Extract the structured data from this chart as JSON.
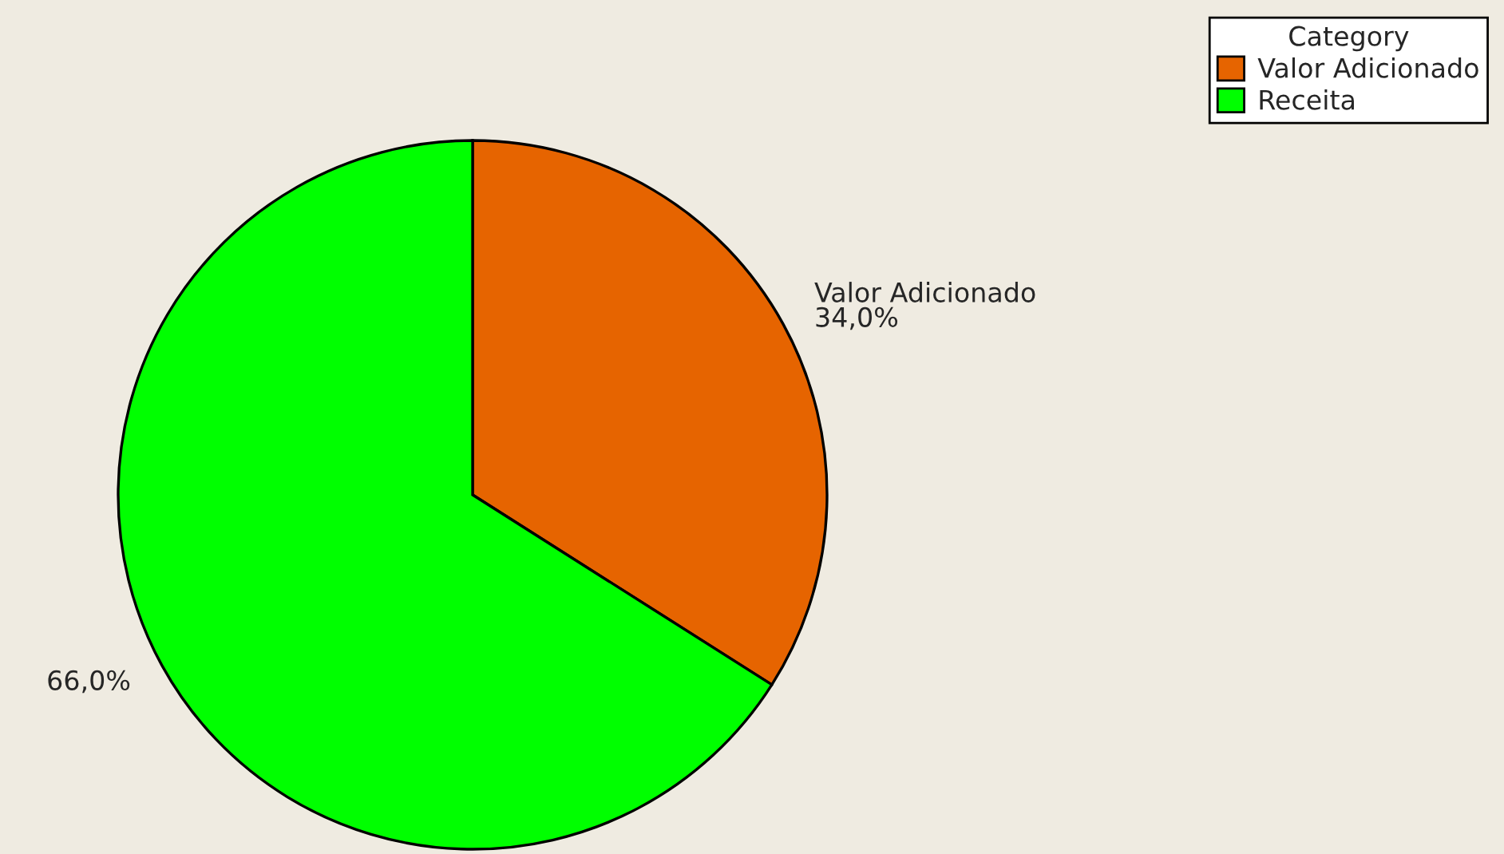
{
  "chart_data": {
    "type": "pie",
    "legend_title": "Category",
    "categories": [
      "Valor Adicionado",
      "Receita"
    ],
    "values": [
      34.0,
      66.0
    ],
    "colors": [
      "#e66400",
      "#00ff00"
    ],
    "value_labels": [
      "Valor Adicionado\n34,0%",
      "66,0%"
    ],
    "legend": "top right"
  }
}
